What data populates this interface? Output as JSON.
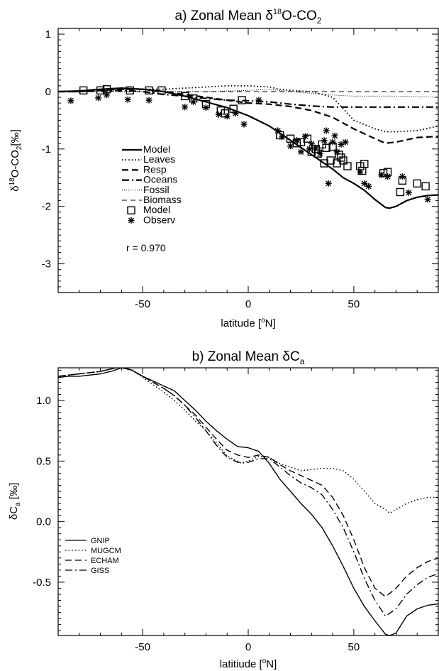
{
  "chart_data": [
    {
      "type": "line",
      "panel": "a",
      "title": "a) Zonal Mean δ18O-CO2",
      "title_parts": {
        "prefix": "a) Zonal Mean δ",
        "sup": "18",
        "mid": "O-CO",
        "sub": "2"
      },
      "xlabel": "latitude [°N]",
      "xlabel_parts": {
        "prefix": "latitude [",
        "sup": "o",
        "suffix": "N]"
      },
      "ylabel": "δ18O-CO2 [‰]",
      "ylabel_parts": {
        "prefix": "δ",
        "sup": "18",
        "mid": "O-CO",
        "sub": "2",
        "suffix": "[‰]"
      },
      "xlim": [
        -90,
        90
      ],
      "ylim": [
        -3.5,
        1.1
      ],
      "x_ticks": [
        -50,
        0,
        50
      ],
      "y_ticks": [
        -3,
        -2,
        -1,
        0,
        1
      ],
      "y_tick_labels": [
        "-3",
        "-2",
        "-1",
        "0",
        "1"
      ],
      "x_tick_labels": [
        "-50",
        "0",
        "50"
      ],
      "legend_position": "left",
      "series": [
        {
          "name": "Model",
          "style": "solid",
          "width": 2.2,
          "x": [
            -90,
            -80,
            -70,
            -60,
            -50,
            -40,
            -30,
            -20,
            -10,
            0,
            10,
            20,
            30,
            40,
            45,
            50,
            55,
            60,
            65,
            67,
            70,
            75,
            80,
            85,
            90
          ],
          "y": [
            0,
            0.01,
            0.04,
            0.06,
            0.04,
            0,
            -0.08,
            -0.18,
            -0.28,
            -0.42,
            -0.6,
            -0.85,
            -1.1,
            -1.35,
            -1.5,
            -1.6,
            -1.72,
            -1.88,
            -2.02,
            -2.03,
            -2.0,
            -1.9,
            -1.84,
            -1.81,
            -1.8
          ]
        },
        {
          "name": "Leaves",
          "style": "dotted",
          "width": 1.8,
          "x": [
            -90,
            -80,
            -70,
            -60,
            -50,
            -40,
            -30,
            -20,
            -10,
            0,
            10,
            15,
            20,
            30,
            40,
            50,
            60,
            65,
            70,
            80,
            90
          ],
          "y": [
            0,
            0.01,
            0.03,
            0.04,
            0.04,
            0.04,
            0.06,
            0.08,
            0.1,
            0.1,
            0.08,
            0.04,
            0.02,
            0,
            -0.1,
            -0.5,
            -0.65,
            -0.7,
            -0.7,
            -0.68,
            -0.6
          ]
        },
        {
          "name": "Resp",
          "style": "dashed",
          "width": 2.2,
          "x": [
            -90,
            -80,
            -70,
            -60,
            -50,
            -40,
            -30,
            -20,
            -10,
            0,
            10,
            20,
            30,
            40,
            50,
            60,
            65,
            70,
            80,
            90
          ],
          "y": [
            0,
            0,
            0.02,
            0.04,
            0.04,
            0,
            -0.05,
            -0.1,
            -0.15,
            -0.2,
            -0.22,
            -0.26,
            -0.33,
            -0.45,
            -0.65,
            -0.82,
            -0.9,
            -0.88,
            -0.8,
            -0.78
          ]
        },
        {
          "name": "Oceans",
          "style": "dashdot",
          "width": 2.2,
          "x": [
            -90,
            -80,
            -70,
            -60,
            -50,
            -40,
            -30,
            -20,
            -10,
            0,
            10,
            20,
            30,
            40,
            50,
            60,
            70,
            80,
            90
          ],
          "y": [
            0,
            0,
            0.01,
            0.02,
            0,
            -0.05,
            -0.08,
            -0.12,
            -0.15,
            -0.16,
            -0.18,
            -0.22,
            -0.25,
            -0.27,
            -0.27,
            -0.27,
            -0.27,
            -0.27,
            -0.27
          ]
        },
        {
          "name": "Fossil",
          "style": "fine-dotted",
          "width": 1,
          "x": [
            -90,
            -60,
            -40,
            -20,
            0,
            10,
            20,
            30,
            40,
            50,
            60,
            70,
            80,
            90
          ],
          "y": [
            0,
            0,
            0,
            0,
            0.02,
            0.04,
            0,
            -0.03,
            -0.06,
            -0.08,
            -0.08,
            -0.08,
            -0.09,
            -0.1
          ]
        },
        {
          "name": "Biomass",
          "style": "thin-dashed",
          "width": 1,
          "x": [
            -90,
            -60,
            -30,
            0,
            30,
            60,
            90
          ],
          "y": [
            0,
            0,
            0,
            0,
            0,
            0,
            0
          ]
        }
      ],
      "markers": [
        {
          "name": "Model",
          "symbol": "square",
          "x": [
            -78,
            -70,
            -67,
            -56,
            -47,
            -41,
            -30,
            -26,
            -20,
            -13,
            -11,
            -7,
            -3,
            15,
            20,
            23,
            25,
            28,
            30,
            32,
            33,
            35,
            36,
            37,
            39,
            40,
            42,
            43,
            44,
            45,
            47,
            53,
            54,
            55,
            64,
            66,
            72,
            73,
            80,
            84
          ],
          "y": [
            0.02,
            0.02,
            0.04,
            0.02,
            0.02,
            0.02,
            -0.08,
            -0.12,
            -0.22,
            -0.33,
            -0.38,
            -0.3,
            -0.15,
            -0.76,
            -0.82,
            -0.9,
            -0.88,
            -0.82,
            -1.05,
            -1.0,
            -1.08,
            -0.92,
            -1.25,
            -0.98,
            -1.2,
            -0.96,
            -1.25,
            -1.1,
            -1.15,
            -1.2,
            -1.3,
            -1.3,
            -1.38,
            -1.26,
            -1.42,
            -1.4,
            -1.75,
            -1.55,
            -1.6,
            -1.65
          ]
        },
        {
          "name": "Observ",
          "symbol": "asterisk",
          "x": [
            -84,
            -71,
            -67,
            -57,
            -47,
            -30,
            -26,
            -20,
            -14,
            -10,
            -6,
            -2,
            5,
            14,
            16,
            20,
            23,
            25,
            27,
            29,
            30,
            32,
            34,
            36,
            37,
            38,
            40,
            41,
            42,
            44,
            46,
            53,
            55,
            57,
            63,
            66,
            73,
            76,
            85
          ],
          "y": [
            -0.16,
            -0.11,
            -0.06,
            -0.14,
            -0.15,
            -0.27,
            -0.18,
            -0.28,
            -0.4,
            -0.43,
            -0.38,
            -0.57,
            -0.15,
            -0.68,
            -0.79,
            -0.95,
            -0.85,
            -1.05,
            -0.78,
            -1.0,
            -0.91,
            -0.98,
            -1.08,
            -0.85,
            -0.68,
            -1.6,
            -0.88,
            -0.77,
            -1.05,
            -0.92,
            -0.88,
            -1.4,
            -1.6,
            -1.65,
            -1.45,
            -1.48,
            -1.48,
            -1.76,
            -1.88
          ]
        }
      ],
      "legend": [
        "Model",
        "Leaves",
        "Resp",
        "Oceans",
        "Fossil",
        "Biomass",
        "Model",
        "Observ"
      ],
      "annotation": "r = 0.970"
    },
    {
      "type": "line",
      "panel": "b",
      "title": "b) Zonal Mean δCa",
      "title_parts": {
        "prefix": "b) Zonal Mean δC",
        "sub": "a"
      },
      "xlabel": "latitiude [°N]",
      "xlabel_parts": {
        "prefix": "latitiude [",
        "sup": "o",
        "suffix": "N]"
      },
      "ylabel": "δCa [‰]",
      "ylabel_parts": {
        "prefix": "δC",
        "sub": "a",
        "suffix": " [‰]"
      },
      "xlim": [
        -90,
        90
      ],
      "ylim": [
        -0.94,
        1.27
      ],
      "x_ticks": [
        -50,
        0,
        50
      ],
      "y_ticks": [
        -0.5,
        0,
        0.5,
        1.0
      ],
      "y_tick_labels": [
        "-0.5",
        "0.0",
        "0.5",
        "1.0"
      ],
      "x_tick_labels": [
        "-50",
        "0",
        "50"
      ],
      "legend_position": "left",
      "series": [
        {
          "name": "GNIP",
          "style": "solid",
          "width": 1.4,
          "x": [
            -90,
            -85,
            -80,
            -75,
            -70,
            -65,
            -60,
            -55,
            -50,
            -45,
            -40,
            -35,
            -30,
            -25,
            -20,
            -15,
            -10,
            -5,
            0,
            5,
            10,
            15,
            20,
            25,
            30,
            35,
            40,
            45,
            50,
            55,
            60,
            65,
            67,
            70,
            75,
            80,
            85,
            90
          ],
          "y": [
            1.19,
            1.2,
            1.2,
            1.21,
            1.22,
            1.24,
            1.27,
            1.25,
            1.2,
            1.16,
            1.12,
            1.08,
            1.0,
            0.92,
            0.83,
            0.75,
            0.68,
            0.62,
            0.61,
            0.58,
            0.48,
            0.35,
            0.25,
            0.15,
            0.06,
            -0.05,
            -0.2,
            -0.37,
            -0.55,
            -0.7,
            -0.82,
            -0.93,
            -0.94,
            -0.92,
            -0.78,
            -0.72,
            -0.69,
            -0.68
          ]
        },
        {
          "name": "MUGCM",
          "style": "dotted",
          "width": 1.4,
          "x": [
            -90,
            -80,
            -70,
            -65,
            -60,
            -55,
            -50,
            -45,
            -40,
            -35,
            -30,
            -25,
            -20,
            -15,
            -10,
            -5,
            -3,
            0,
            5,
            10,
            15,
            20,
            25,
            30,
            35,
            40,
            45,
            50,
            55,
            60,
            65,
            67,
            70,
            75,
            80,
            85,
            90
          ],
          "y": [
            1.2,
            1.22,
            1.24,
            1.26,
            1.28,
            1.25,
            1.19,
            1.13,
            1.07,
            1.0,
            0.92,
            0.83,
            0.75,
            0.65,
            0.54,
            0.5,
            0.48,
            0.5,
            0.54,
            0.53,
            0.48,
            0.45,
            0.42,
            0.43,
            0.44,
            0.44,
            0.42,
            0.35,
            0.25,
            0.15,
            0.1,
            0.07,
            0.1,
            0.15,
            0.18,
            0.2,
            0.2
          ]
        },
        {
          "name": "ECHAM",
          "style": "dashed",
          "width": 1.4,
          "x": [
            -90,
            -80,
            -70,
            -65,
            -60,
            -55,
            -50,
            -45,
            -40,
            -35,
            -30,
            -25,
            -20,
            -15,
            -10,
            -5,
            0,
            5,
            10,
            15,
            20,
            25,
            30,
            35,
            40,
            45,
            50,
            55,
            60,
            65,
            70,
            75,
            80,
            85,
            90
          ],
          "y": [
            1.2,
            1.22,
            1.24,
            1.26,
            1.28,
            1.25,
            1.2,
            1.15,
            1.1,
            1.04,
            0.96,
            0.88,
            0.78,
            0.68,
            0.59,
            0.55,
            0.53,
            0.55,
            0.53,
            0.47,
            0.42,
            0.38,
            0.34,
            0.3,
            0.2,
            0.05,
            -0.15,
            -0.38,
            -0.55,
            -0.62,
            -0.55,
            -0.45,
            -0.38,
            -0.33,
            -0.3
          ]
        },
        {
          "name": "GISS",
          "style": "dashdot",
          "width": 1.4,
          "x": [
            -90,
            -80,
            -70,
            -65,
            -60,
            -55,
            -50,
            -45,
            -40,
            -35,
            -30,
            -25,
            -20,
            -15,
            -10,
            -5,
            0,
            5,
            10,
            15,
            20,
            25,
            30,
            35,
            40,
            45,
            50,
            55,
            60,
            65,
            70,
            75,
            80,
            85,
            90
          ],
          "y": [
            1.2,
            1.22,
            1.24,
            1.26,
            1.28,
            1.25,
            1.2,
            1.15,
            1.1,
            1.04,
            0.96,
            0.86,
            0.75,
            0.63,
            0.53,
            0.49,
            0.49,
            0.52,
            0.52,
            0.45,
            0.38,
            0.32,
            0.28,
            0.22,
            0.1,
            -0.05,
            -0.25,
            -0.47,
            -0.65,
            -0.78,
            -0.72,
            -0.6,
            -0.52,
            -0.46,
            -0.43
          ]
        }
      ],
      "legend": [
        "GNIP",
        "MUGCM",
        "ECHAM",
        "GISS"
      ]
    }
  ]
}
